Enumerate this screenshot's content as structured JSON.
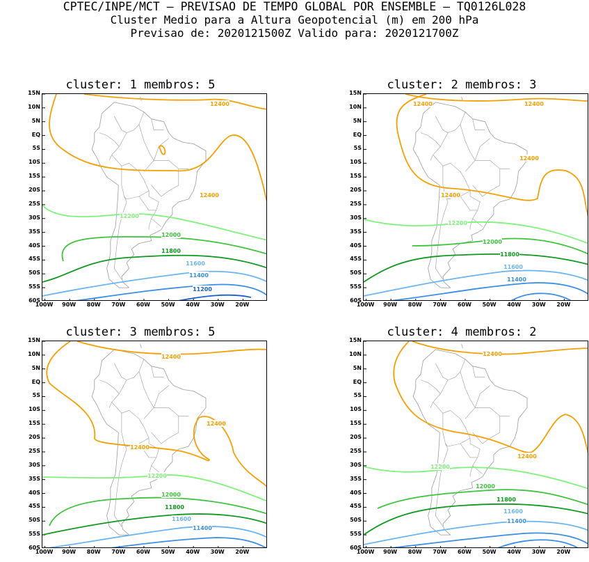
{
  "header": {
    "line1": "CPTEC/INPE/MCT – PREVISAO DE TEMPO GLOBAL POR ENSEMBLE – TQ0126L028",
    "line2": "Cluster Medio para a Altura Geopotencial (m) em 200 hPa",
    "line3": "Previsao de: 2020121500Z   Valido para: 2020121700Z"
  },
  "y_axis_labels": [
    "15N",
    "10N",
    "5N",
    "EQ",
    "5S",
    "10S",
    "15S",
    "20S",
    "25S",
    "30S",
    "35S",
    "40S",
    "45S",
    "50S",
    "55S",
    "60S"
  ],
  "x_axis_labels": [
    "100W",
    "90W",
    "80W",
    "70W",
    "60W",
    "50W",
    "40W",
    "30W",
    "20W"
  ],
  "colors": {
    "c12400": "#f5a000",
    "c12200": "#7ef27a",
    "c12000": "#3cc43c",
    "c11800": "#0e9a1e",
    "c11600": "#6ab4f2",
    "c11400": "#3a8ee6",
    "c11200": "#1a5ed0",
    "coast": "#9a9a9a"
  },
  "panels": [
    {
      "title": "cluster: 1   membros: 5",
      "labels": [
        "12400",
        "12400",
        "12200",
        "12000",
        "11800",
        "11600",
        "11400",
        "11200"
      ]
    },
    {
      "title": "cluster: 2   membros: 3",
      "labels": [
        "12400",
        "12400",
        "12400",
        "12400",
        "12200",
        "12000",
        "11800",
        "11600",
        "11400"
      ]
    },
    {
      "title": "cluster: 3   membros: 5",
      "labels": [
        "12400",
        "12400",
        "12400",
        "12200",
        "12000",
        "11800",
        "11600",
        "11400"
      ]
    },
    {
      "title": "cluster: 4   membros: 2",
      "labels": [
        "12400",
        "12400",
        "12200",
        "12000",
        "11800",
        "11600",
        "11400"
      ]
    }
  ]
}
